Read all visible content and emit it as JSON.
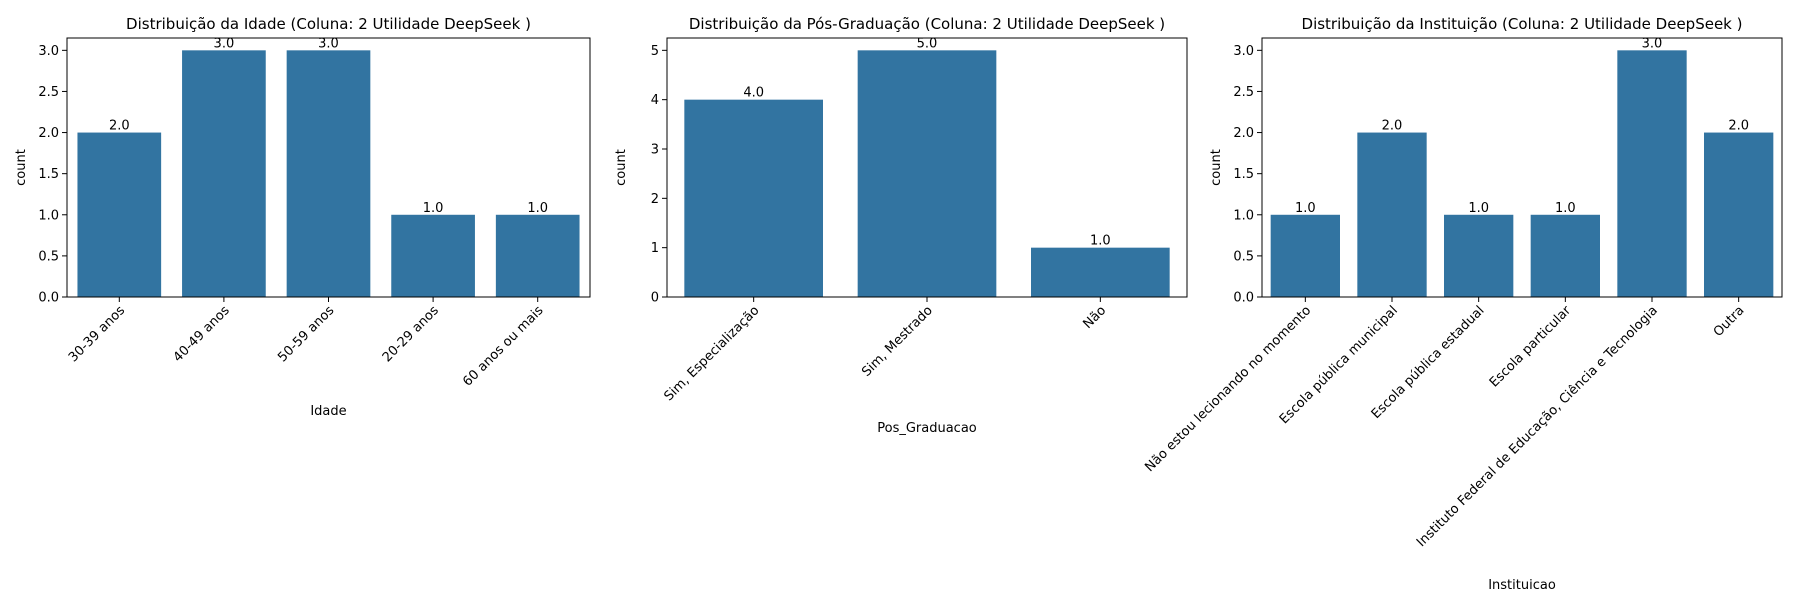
{
  "chart_data": [
    {
      "type": "bar",
      "title": "Distribuição da Idade (Coluna: 2 Utilidade DeepSeek )",
      "xlabel": "Idade",
      "ylabel": "count",
      "categories": [
        "30-39 anos",
        "40-49 anos",
        "50-59 anos",
        "20-29 anos",
        "60 anos ou mais"
      ],
      "values": [
        2,
        3,
        3,
        1,
        1
      ],
      "value_labels": [
        "2.0",
        "3.0",
        "3.0",
        "1.0",
        "1.0"
      ],
      "ylim": [
        0,
        3.15
      ],
      "yticks": [
        0,
        0.5,
        1,
        1.5,
        2,
        2.5,
        3
      ],
      "ytick_labels": [
        "0.0",
        "0.5",
        "1.0",
        "1.5",
        "2.0",
        "2.5",
        "3.0"
      ],
      "xtick_rotation": 45,
      "grid": false,
      "color": "#3274a1"
    },
    {
      "type": "bar",
      "title": "Distribuição da Pós-Graduação (Coluna: 2 Utilidade DeepSeek )",
      "xlabel": "Pos_Graduacao",
      "ylabel": "count",
      "categories": [
        "Sim, Especialização",
        "Sim, Mestrado",
        "Não"
      ],
      "values": [
        4,
        5,
        1
      ],
      "value_labels": [
        "4.0",
        "5.0",
        "1.0"
      ],
      "ylim": [
        0,
        5.25
      ],
      "yticks": [
        0,
        1,
        2,
        3,
        4,
        5
      ],
      "ytick_labels": [
        "0",
        "1",
        "2",
        "3",
        "4",
        "5"
      ],
      "xtick_rotation": 45,
      "grid": false,
      "color": "#3274a1"
    },
    {
      "type": "bar",
      "title": "Distribuição da Instituição (Coluna: 2 Utilidade DeepSeek )",
      "xlabel": "Instituicao",
      "ylabel": "count",
      "categories": [
        "Não estou lecionando no momento",
        "Escola pública municipal",
        "Escola pública estadual",
        "Escola particular",
        "Instituto Federal de Educação, Ciência e Tecnologia",
        "Outra"
      ],
      "values": [
        1,
        2,
        1,
        1,
        3,
        2
      ],
      "value_labels": [
        "1.0",
        "2.0",
        "1.0",
        "1.0",
        "3.0",
        "2.0"
      ],
      "ylim": [
        0,
        3.15
      ],
      "yticks": [
        0,
        0.5,
        1,
        1.5,
        2,
        2.5,
        3
      ],
      "ytick_labels": [
        "0.0",
        "0.5",
        "1.0",
        "1.5",
        "2.0",
        "2.5",
        "3.0"
      ],
      "xtick_rotation": 45,
      "grid": false,
      "color": "#3274a1"
    }
  ]
}
